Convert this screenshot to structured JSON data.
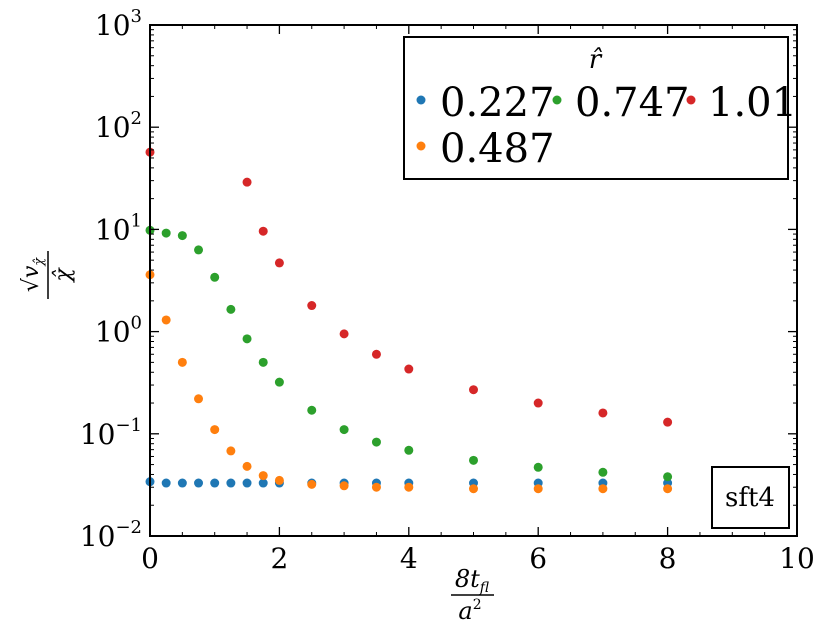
{
  "chart_data": {
    "type": "scatter",
    "x_axis": {
      "label_numerator": "8t",
      "label_numerator_sub": "fl",
      "label_denominator": "a",
      "label_denominator_sup": "2",
      "range": [
        0,
        10
      ],
      "ticks": [
        0,
        2,
        4,
        6,
        8,
        10
      ]
    },
    "y_axis": {
      "label_top": "√v",
      "label_top_sub": "χ̂",
      "label_bottom": "χ̂",
      "scale": "log",
      "range": [
        0.01,
        1000
      ],
      "ticks": [
        {
          "value": 0.01,
          "base": "10",
          "exp": "−2"
        },
        {
          "value": 0.1,
          "base": "10",
          "exp": "−1"
        },
        {
          "value": 1,
          "base": "10",
          "exp": "0"
        },
        {
          "value": 10,
          "base": "10",
          "exp": "1"
        },
        {
          "value": 100,
          "base": "10",
          "exp": "2"
        },
        {
          "value": 1000,
          "base": "10",
          "exp": "3"
        }
      ]
    },
    "grid": false,
    "legend": {
      "title": "r̂",
      "placement": "top-right",
      "entries": [
        "0.227",
        "0.747",
        "1.01",
        "0.487"
      ]
    },
    "annotation": {
      "text": "sft4",
      "placement": "bottom-right"
    },
    "series": [
      {
        "name": "0.227",
        "color": "#1f77b4",
        "x": [
          0,
          0.25,
          0.5,
          0.75,
          1,
          1.25,
          1.5,
          1.75,
          2,
          2.5,
          3,
          3.5,
          4,
          5,
          6,
          7,
          8
        ],
        "y": [
          0.034,
          0.033,
          0.033,
          0.033,
          0.033,
          0.033,
          0.033,
          0.033,
          0.033,
          0.033,
          0.033,
          0.033,
          0.033,
          0.033,
          0.033,
          0.033,
          0.033
        ]
      },
      {
        "name": "0.487",
        "color": "#ff7f0e",
        "x": [
          0,
          0.25,
          0.5,
          0.75,
          1,
          1.25,
          1.5,
          1.75,
          2,
          2.5,
          3,
          3.5,
          4,
          5,
          6,
          7,
          8
        ],
        "y": [
          3.6,
          1.3,
          0.5,
          0.22,
          0.11,
          0.068,
          0.048,
          0.039,
          0.035,
          0.032,
          0.031,
          0.03,
          0.03,
          0.029,
          0.029,
          0.029,
          0.029
        ]
      },
      {
        "name": "0.747",
        "color": "#2ca02c",
        "x": [
          0,
          0.25,
          0.5,
          0.75,
          1,
          1.25,
          1.5,
          1.75,
          2,
          2.5,
          3,
          3.5,
          4,
          5,
          6,
          7,
          8
        ],
        "y": [
          9.8,
          9.2,
          8.7,
          6.3,
          3.4,
          1.65,
          0.85,
          0.5,
          0.32,
          0.17,
          0.11,
          0.083,
          0.069,
          0.055,
          0.047,
          0.042,
          0.038
        ]
      },
      {
        "name": "1.01",
        "color": "#d62728",
        "x": [
          0,
          1.5,
          1.75,
          2,
          2.5,
          3,
          3.5,
          4,
          5,
          6,
          7,
          8
        ],
        "y": [
          57,
          29,
          9.6,
          4.7,
          1.8,
          0.95,
          0.6,
          0.43,
          0.27,
          0.2,
          0.16,
          0.13
        ]
      }
    ]
  }
}
